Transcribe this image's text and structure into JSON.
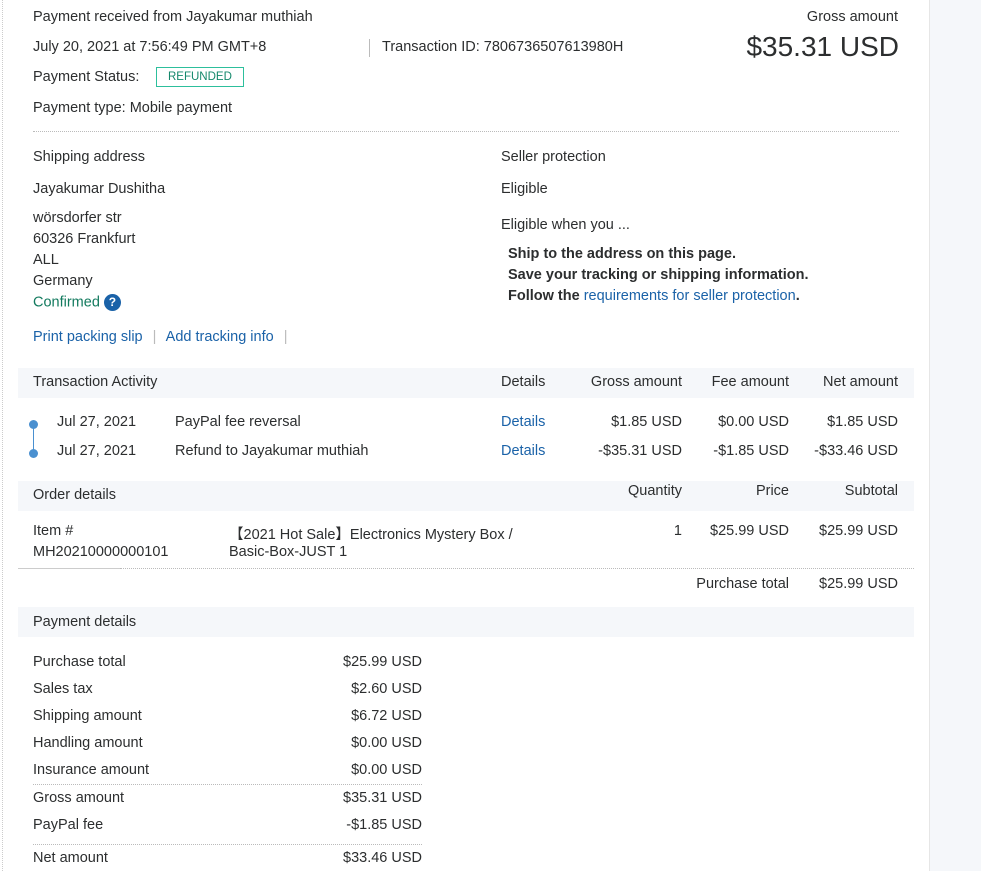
{
  "header": {
    "title": "Payment received from Jayakumar muthiah",
    "datetime": "July 20, 2021 at 7:56:49 PM GMT+8",
    "transaction_id": "Transaction ID: 7806736507613980H",
    "status_label": "Payment Status:",
    "status": "REFUNDED",
    "payment_type": "Payment type: Mobile payment",
    "gross_label": "Gross amount",
    "gross_value": "$35.31 USD"
  },
  "shipping": {
    "title": "Shipping address",
    "name": "Jayakumar Dushitha",
    "lines": [
      "wörsdorfer str",
      "60326 Frankfurt",
      "ALL",
      "Germany"
    ],
    "confirmed": "Confirmed",
    "help_icon": "question-circle-icon",
    "print_link": "Print packing slip",
    "tracking_link": "Add tracking info"
  },
  "protection": {
    "title": "Seller protection",
    "status": "Eligible",
    "when": "Eligible when you ...",
    "req1": "Ship to the address on this page.",
    "req2": "Save your tracking or shipping information.",
    "req3_prefix": "Follow the ",
    "req3_link": "requirements for seller protection",
    "req3_suffix": "."
  },
  "activity": {
    "title": "Transaction Activity",
    "columns": [
      "Details",
      "Gross amount",
      "Fee amount",
      "Net amount"
    ],
    "rows": [
      {
        "date": "Jul 27, 2021",
        "desc": "PayPal fee reversal",
        "details": "Details",
        "gross": "$1.85 USD",
        "fee": "$0.00 USD",
        "net": "$1.85 USD"
      },
      {
        "date": "Jul 27, 2021",
        "desc": "Refund to Jayakumar muthiah",
        "details": "Details",
        "gross": "-$35.31 USD",
        "fee": "-$1.85 USD",
        "net": "-$33.46 USD"
      }
    ]
  },
  "order": {
    "title": "Order details",
    "columns": [
      "Quantity",
      "Price",
      "Subtotal"
    ],
    "item_label": "Item #",
    "item_number": "MH20210000000101",
    "item_name_1": "【2021 Hot Sale】Electronics Mystery Box /",
    "item_name_2": "Basic-Box-JUST 1",
    "quantity": "1",
    "price": "$25.99 USD",
    "subtotal": "$25.99 USD",
    "purchase_total_label": "Purchase total",
    "purchase_total": "$25.99 USD"
  },
  "payment": {
    "title": "Payment details",
    "rows": [
      {
        "label": "Purchase total",
        "value": "$25.99 USD"
      },
      {
        "label": "Sales tax",
        "value": "$2.60 USD"
      },
      {
        "label": "Shipping amount",
        "value": "$6.72 USD"
      },
      {
        "label": "Handling amount",
        "value": "$0.00 USD"
      },
      {
        "label": "Insurance amount",
        "value": "$0.00 USD"
      },
      {
        "label": "Gross amount",
        "value": "$35.31 USD"
      },
      {
        "label": "PayPal fee",
        "value": "-$1.85 USD"
      },
      {
        "label": "Net amount",
        "value": "$33.46 USD"
      }
    ]
  },
  "colors": {
    "link": "#1a62a8",
    "badge": "#2dbf9c",
    "confirmed": "#127a5e",
    "band": "#f5f7fa"
  }
}
